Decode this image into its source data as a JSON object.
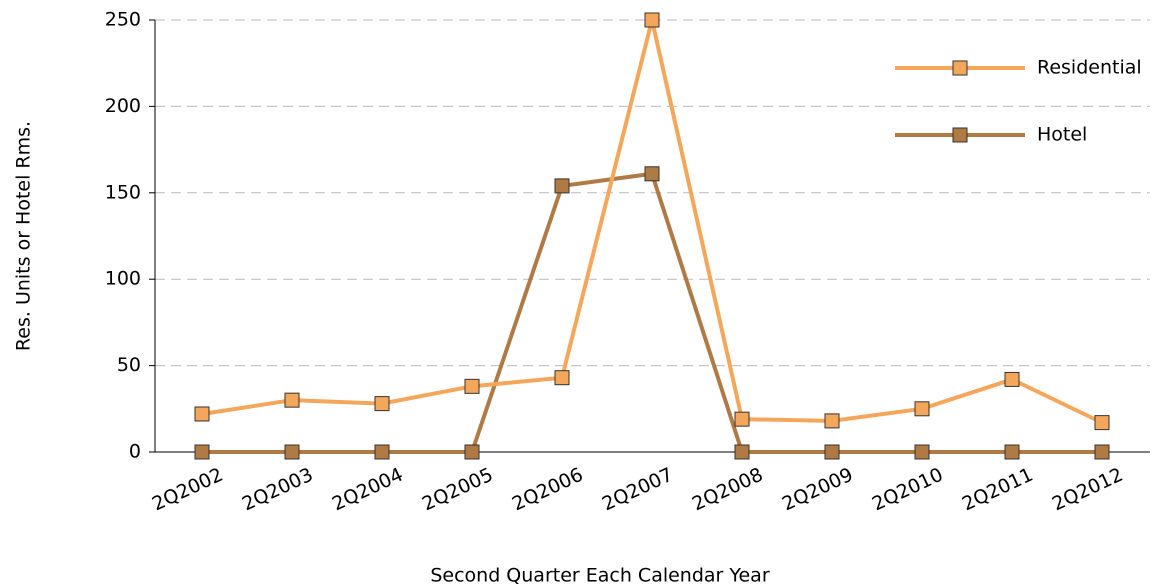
{
  "chart_data": {
    "type": "line",
    "x_label": "Second Quarter Each Calendar Year",
    "y_label": "Res. Units or Hotel Rms.",
    "categories": [
      "2Q2002",
      "2Q2003",
      "2Q2004",
      "2Q2005",
      "2Q2006",
      "2Q2007",
      "2Q2008",
      "2Q2009",
      "2Q2010",
      "2Q2011",
      "2Q2012"
    ],
    "series": [
      {
        "name": "Residential",
        "color": "#f4a75a",
        "values": [
          22,
          30,
          28,
          38,
          43,
          250,
          19,
          18,
          25,
          42,
          17
        ]
      },
      {
        "name": "Hotel",
        "color": "#b07a45",
        "values": [
          0,
          0,
          0,
          0,
          154,
          161,
          0,
          0,
          0,
          0,
          0
        ]
      }
    ],
    "ylim": [
      0,
      250
    ],
    "yticks": [
      0,
      50,
      100,
      150,
      200,
      250
    ],
    "grid": true,
    "legend": "upper right"
  }
}
